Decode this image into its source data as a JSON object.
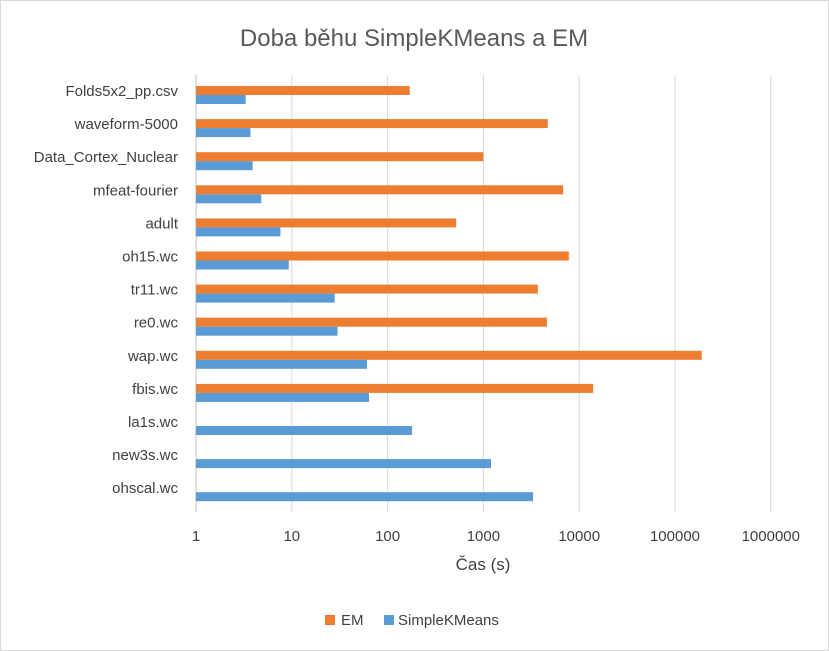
{
  "chart_data": {
    "type": "bar",
    "orientation": "horizontal",
    "title": "Doba běhu SimpleKMeans a EM",
    "xlabel": "Čas (s)",
    "ylabel": "",
    "xscale": "log",
    "xlim": [
      1,
      1000000
    ],
    "xticks": [
      "1",
      "10",
      "100",
      "1000",
      "10000",
      "100000",
      "1000000"
    ],
    "grid": true,
    "legend_position": "bottom",
    "categories": [
      "Folds5x2_pp.csv",
      "waveform-5000",
      "Data_Cortex_Nuclear",
      "mfeat-fourier",
      "adult",
      "oh15.wc",
      "tr11.wc",
      "re0.wc",
      "wap.wc",
      "fbis.wc",
      "la1s.wc",
      "new3s.wc",
      "ohscal.wc"
    ],
    "series": [
      {
        "name": "EM",
        "color": "#ED7D31",
        "values": [
          170,
          4700,
          1000,
          6800,
          520,
          7800,
          3700,
          4600,
          190000,
          14000,
          null,
          null,
          null
        ]
      },
      {
        "name": "SimpleKMeans",
        "color": "#5B9BD5",
        "values": [
          3.3,
          3.7,
          3.9,
          4.8,
          7.6,
          9.3,
          28,
          30,
          61,
          64,
          180,
          1200,
          3300
        ]
      }
    ]
  }
}
